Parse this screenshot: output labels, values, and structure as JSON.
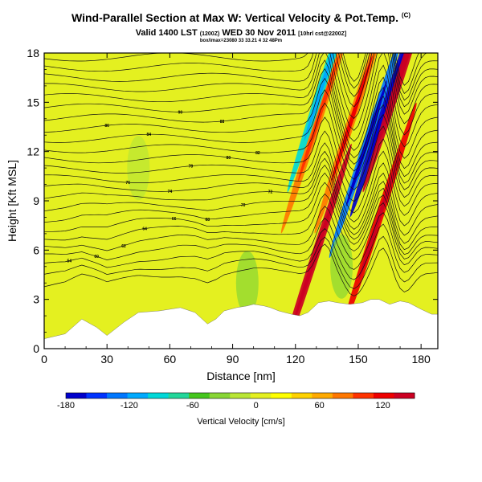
{
  "header": {
    "title": "Wind-Parallel Section at Max W: Vertical Velocity & Pot.Temp.",
    "title_mark": "(C)",
    "valid_prefix": "Valid 1400 LST",
    "valid_utc": "(1200Z)",
    "valid_day": "WED 30 Nov 2011",
    "valid_run": "[10hrl cst@2200Z]",
    "subline": "box/imax=23080 33 33.21 4 32 48Pm"
  },
  "colors": {
    "plot_bg": "#e4f020",
    "terrain": "#ffffff",
    "contour": "#111111"
  },
  "chart_data": {
    "type": "heatmap",
    "xlabel": "Distance [nm]",
    "ylabel": "Height [Kft MSL]",
    "xlim": [
      0,
      188
    ],
    "ylim": [
      0,
      18
    ],
    "x_ticks": [
      0,
      30,
      60,
      90,
      120,
      150,
      180
    ],
    "y_ticks": [
      0,
      3,
      6,
      9,
      12,
      15,
      18
    ],
    "x_tick_labels": [
      "0",
      "30",
      "60",
      "90",
      "120",
      "150",
      "180"
    ],
    "y_tick_labels": [
      "0",
      "3",
      "6",
      "9",
      "12",
      "15",
      "18"
    ],
    "colorbar": {
      "label": "Vertical Velocity [cm/s]",
      "range": [
        -180,
        150
      ],
      "tick_values": [
        -180,
        -120,
        -60,
        0,
        60,
        120
      ],
      "tick_labels": [
        "-180",
        "-120",
        "-60",
        "0",
        "60",
        "120"
      ],
      "colors": [
        "#0000cc",
        "#0033ff",
        "#0077ff",
        "#00aaff",
        "#00d8d8",
        "#22d79a",
        "#44c61c",
        "#88d634",
        "#b9e634",
        "#e4f020",
        "#ffff00",
        "#ffd200",
        "#ffaa00",
        "#ff7700",
        "#ff3300",
        "#ee0000",
        "#cc0022"
      ]
    },
    "terrain_profile": [
      [
        0,
        0.6
      ],
      [
        10,
        0.9
      ],
      [
        18,
        1.8
      ],
      [
        25,
        1.3
      ],
      [
        30,
        0.8
      ],
      [
        38,
        1.6
      ],
      [
        45,
        2.2
      ],
      [
        55,
        2.3
      ],
      [
        65,
        2.5
      ],
      [
        72,
        2.2
      ],
      [
        78,
        1.5
      ],
      [
        82,
        1.8
      ],
      [
        86,
        2.3
      ],
      [
        92,
        2.5
      ],
      [
        97,
        2.6
      ],
      [
        100,
        2.7
      ],
      [
        105,
        2.6
      ],
      [
        108,
        2.5
      ],
      [
        112,
        2.3
      ],
      [
        118,
        2.1
      ],
      [
        122,
        2.0
      ],
      [
        126,
        2.2
      ],
      [
        131,
        2.8
      ],
      [
        136,
        2.9
      ],
      [
        140,
        2.8
      ],
      [
        146,
        2.7
      ],
      [
        152,
        2.8
      ],
      [
        156,
        3.0
      ],
      [
        160,
        3.0
      ],
      [
        165,
        2.7
      ],
      [
        170,
        2.9
      ],
      [
        174,
        2.8
      ],
      [
        180,
        2.4
      ],
      [
        185,
        2.1
      ],
      [
        188,
        2.1
      ]
    ],
    "vertical_velocity_features": [
      {
        "x": 129,
        "z": 5.5,
        "value": 150
      },
      {
        "x": 131,
        "z": 14.0,
        "value": 80
      },
      {
        "x": 134,
        "z": 16.5,
        "value": -90
      },
      {
        "x": 147,
        "z": 14.0,
        "value": 90
      },
      {
        "x": 154,
        "z": 12.5,
        "value": -140
      },
      {
        "x": 160,
        "z": 8.0,
        "value": 130
      },
      {
        "x": 164,
        "z": 15.0,
        "value": -180
      },
      {
        "x": 170,
        "z": 16.5,
        "value": 140
      },
      {
        "x": 142,
        "z": 5.0,
        "value": -40
      },
      {
        "x": 97,
        "z": 4.0,
        "value": -30
      },
      {
        "x": 45,
        "z": 11.0,
        "value": -20
      }
    ],
    "theta_contours": {
      "count": 26,
      "label_values": [
        "54",
        "60",
        "62",
        "64",
        "66",
        "68",
        "70",
        "72",
        "74",
        "76",
        "78",
        "80",
        "82",
        "84",
        "86",
        "88",
        "90"
      ]
    }
  }
}
